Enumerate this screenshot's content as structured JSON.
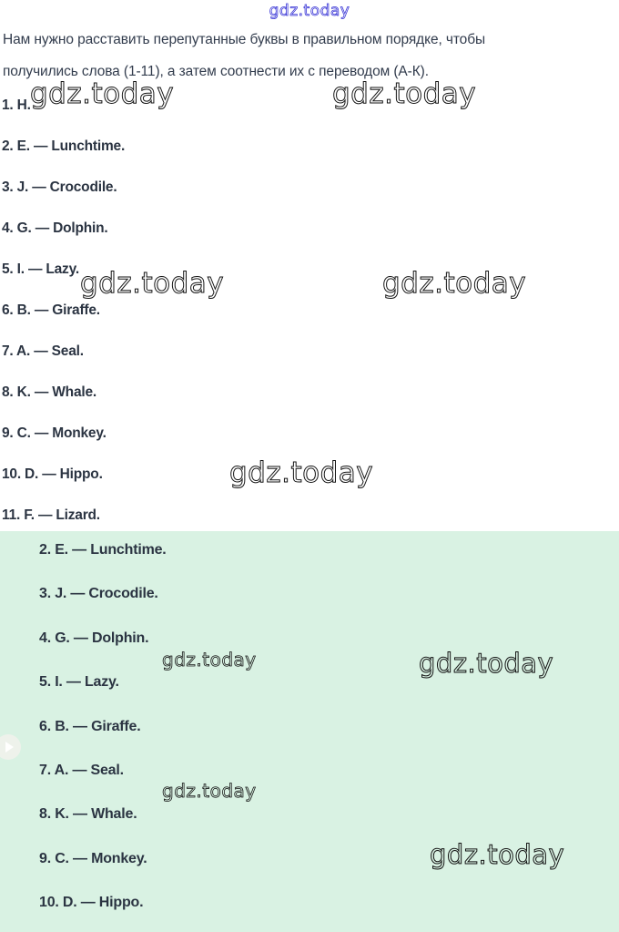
{
  "colors": {
    "background": "#ffffff",
    "card_background": "#d9f2e3",
    "text": "#2b3442",
    "link": "#3a36d6",
    "watermark": "#141414"
  },
  "header": {
    "site_link": "gdz.today"
  },
  "watermark": {
    "text": "gdz.today"
  },
  "intro": {
    "line1": "Нам нужно расставить перепутанные буквы в правильном порядке, чтобы",
    "line2": "получились слова (1-11), а затем соотнести их с переводом (А-К)."
  },
  "task_list": {
    "items": [
      {
        "label": "1. H."
      },
      {
        "label": "2. E. — Lunchtime."
      },
      {
        "label": "3. J. — Crocodile."
      },
      {
        "label": "4. G. — Dolphin."
      },
      {
        "label": "5. I. — Lazy."
      },
      {
        "label": "6. B. — Giraffe."
      },
      {
        "label": "7. A. — Seal."
      },
      {
        "label": "8. K. — Whale."
      },
      {
        "label": "9. C. — Monkey."
      },
      {
        "label": "10. D. — Hippo."
      },
      {
        "label": "11. F. — Lizard."
      }
    ]
  },
  "answer_card": {
    "items": [
      {
        "label": "2. E. — Lunchtime."
      },
      {
        "label": "3. J. — Crocodile."
      },
      {
        "label": "4. G. — Dolphin."
      },
      {
        "label": "5. I. — Lazy."
      },
      {
        "label": "6. B. — Giraffe."
      },
      {
        "label": "7. A. — Seal."
      },
      {
        "label": "8. K. — Whale."
      },
      {
        "label": "9. C. — Monkey."
      },
      {
        "label": "10. D. — Hippo."
      }
    ]
  }
}
